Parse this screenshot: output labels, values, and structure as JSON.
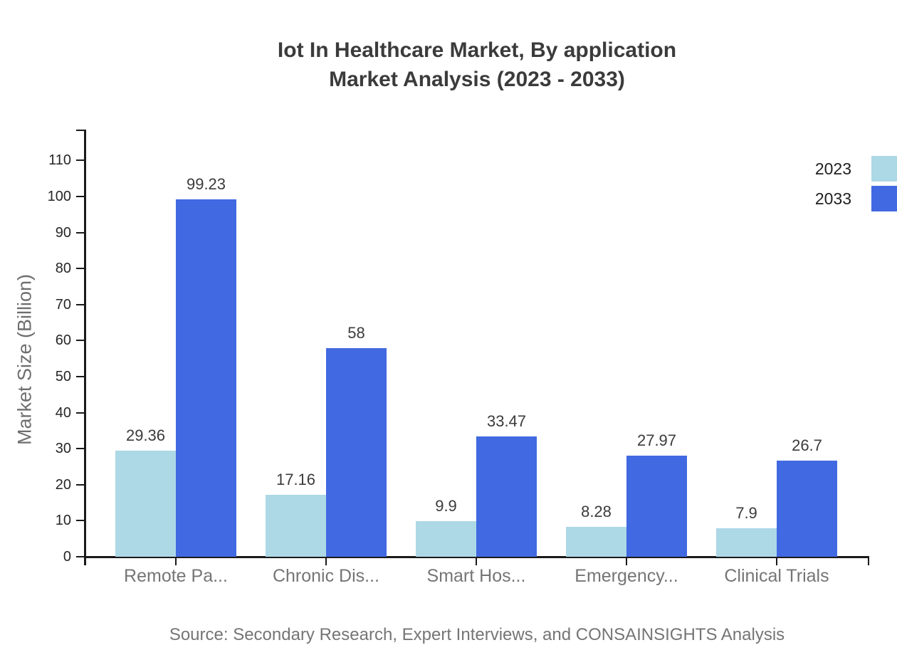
{
  "title": {
    "line1": "Iot In Healthcare Market, By application",
    "line2": "Market Analysis (2023 - 2033)"
  },
  "source": "Source: Secondary Research, Expert Interviews, and CONSAINSIGHTS Analysis",
  "colors": {
    "series_2023": "#ADD8E6",
    "series_2033": "#4169E1",
    "axis": "#1a1a1a",
    "title_text": "#3b3b3b",
    "muted_text": "#757575"
  },
  "chart_data": {
    "type": "bar",
    "categories": [
      "Remote Pa...",
      "Chronic Dis...",
      "Smart Hos...",
      "Emergency...",
      "Clinical Trials"
    ],
    "series": [
      {
        "name": "2023",
        "color": "#ADD8E6",
        "values": [
          29.36,
          17.16,
          9.9,
          8.28,
          7.9
        ]
      },
      {
        "name": "2033",
        "color": "#4169E1",
        "values": [
          99.23,
          58,
          33.47,
          27.97,
          26.7
        ]
      }
    ],
    "title": "Iot In Healthcare Market, By application Market Analysis (2023 - 2033)",
    "xlabel": "",
    "ylabel": "Market Size (Billion)",
    "ylim": [
      0,
      118
    ],
    "yticks": [
      0,
      10,
      20,
      30,
      40,
      50,
      60,
      70,
      80,
      90,
      100,
      110
    ],
    "grid": false,
    "value_labels": true,
    "legend_position": "top-right"
  }
}
